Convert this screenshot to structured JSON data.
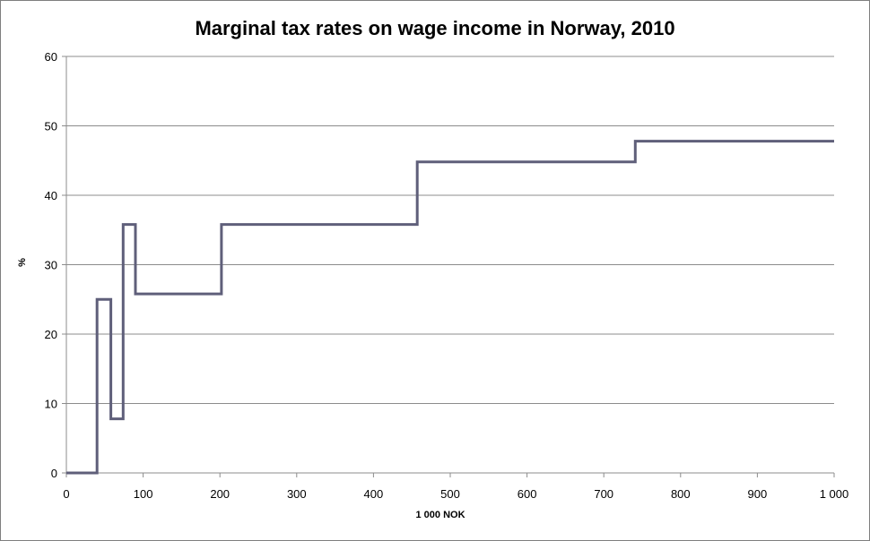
{
  "chart_data": {
    "type": "line",
    "title": "Marginal tax rates on wage income in Norway, 2010",
    "xlabel": "1 000 NOK",
    "ylabel": "%",
    "xlim": [
      0,
      1000
    ],
    "ylim": [
      0,
      60
    ],
    "x_ticks": [
      "0",
      "100",
      "200",
      "300",
      "400",
      "500",
      "600",
      "700",
      "800",
      "900",
      "1 000"
    ],
    "y_ticks": [
      "0",
      "10",
      "20",
      "30",
      "40",
      "50",
      "60"
    ],
    "grid": "horizontal",
    "legend": "none",
    "line_color": "#5f5f7a",
    "series": [
      {
        "step": true,
        "points": [
          [
            0,
            0
          ],
          [
            40,
            0
          ],
          [
            40,
            25
          ],
          [
            58,
            25
          ],
          [
            58,
            7.8
          ],
          [
            74,
            7.8
          ],
          [
            74,
            35.8
          ],
          [
            90,
            35.8
          ],
          [
            90,
            25.8
          ],
          [
            202,
            25.8
          ],
          [
            202,
            35.8
          ],
          [
            457,
            35.8
          ],
          [
            457,
            44.8
          ],
          [
            741,
            44.8
          ],
          [
            741,
            47.8
          ],
          [
            1000,
            47.8
          ]
        ]
      }
    ]
  }
}
